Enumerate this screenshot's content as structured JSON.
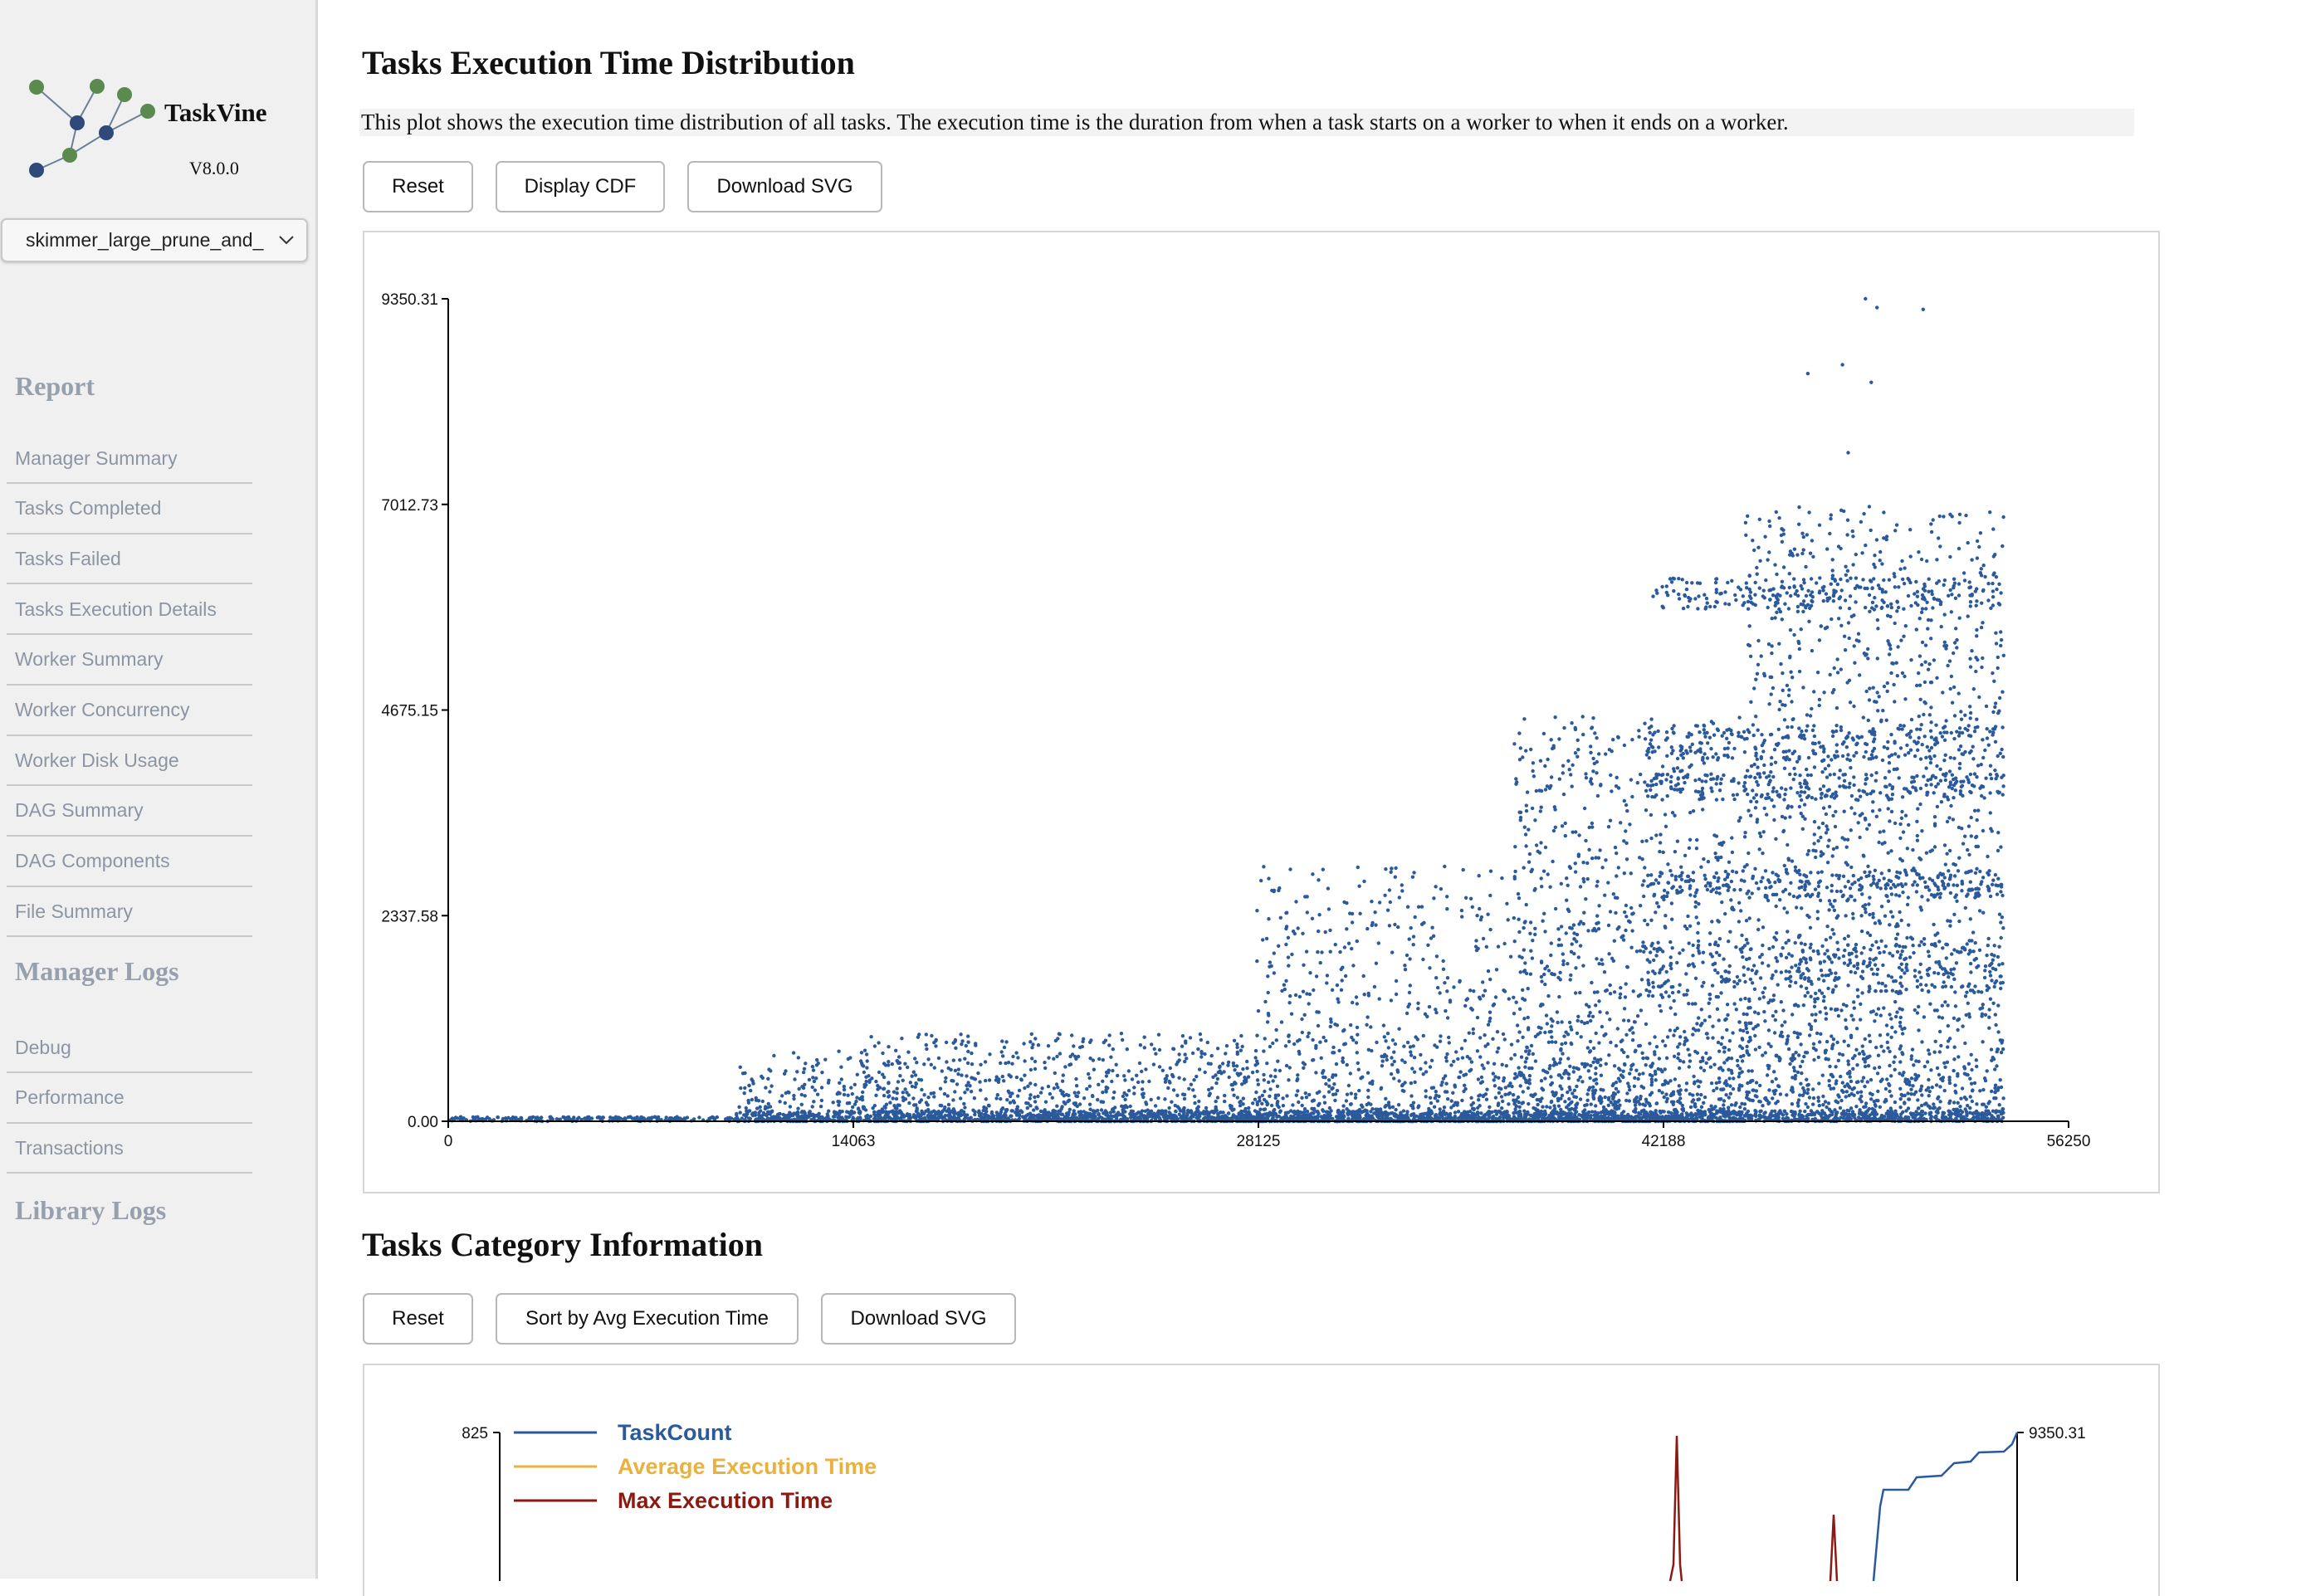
{
  "app": {
    "name": "TaskVine",
    "version": "V8.0.0"
  },
  "log_select": {
    "value": "skimmer_large_prune_and_"
  },
  "sidebar": {
    "report_heading": "Report",
    "report_items": [
      {
        "label": "Manager Summary"
      },
      {
        "label": "Tasks Completed"
      },
      {
        "label": "Tasks Failed"
      },
      {
        "label": "Tasks Execution Details"
      },
      {
        "label": "Worker Summary"
      },
      {
        "label": "Worker Concurrency"
      },
      {
        "label": "Worker Disk Usage"
      },
      {
        "label": "DAG Summary"
      },
      {
        "label": "DAG Components"
      },
      {
        "label": "File Summary"
      }
    ],
    "manager_logs_heading": "Manager Logs",
    "manager_logs_items": [
      {
        "label": "Debug"
      },
      {
        "label": "Performance"
      },
      {
        "label": "Transactions"
      }
    ],
    "library_logs_heading": "Library Logs"
  },
  "execution_section": {
    "title": "Tasks Execution Time Distribution",
    "description": "This plot shows the execution time distribution of all tasks. The execution time is the duration from when a task starts on a worker to when it ends on a worker.",
    "buttons": {
      "reset": "Reset",
      "display_cdf": "Display CDF",
      "download_svg": "Download SVG"
    }
  },
  "category_section": {
    "title": "Tasks Category Information",
    "buttons": {
      "reset": "Reset",
      "sort": "Sort by Avg Execution Time",
      "download_svg": "Download SVG"
    }
  },
  "colors": {
    "point": "#2b5a9c",
    "task_count": "#2b5a9c",
    "avg_exec": "#e8b140",
    "max_exec": "#8b1a12"
  },
  "chart_data": [
    {
      "type": "scatter",
      "title": "",
      "xlabel": "",
      "ylabel": "",
      "xlim": [
        0,
        56250
      ],
      "ylim": [
        0,
        9350.31
      ],
      "x_ticks": [
        "0",
        "14063",
        "28125",
        "42188",
        "56250"
      ],
      "y_ticks": [
        "0.00",
        "2337.58",
        "4675.15",
        "7012.73",
        "9350.31"
      ],
      "grid": false,
      "series": [
        {
          "density_profile": [
            {
              "x_range": [
                0,
                10000
              ],
              "y_range": [
                0,
                60
              ],
              "density": "low"
            },
            {
              "x_range": [
                10000,
                14000
              ],
              "y_range": [
                0,
                800
              ],
              "density": "low"
            },
            {
              "x_range": [
                14000,
                28000
              ],
              "y_range": [
                0,
                1000
              ],
              "density": "medium"
            },
            {
              "x_range": [
                28000,
                37000
              ],
              "y_range": [
                0,
                3000
              ],
              "density": "medium"
            },
            {
              "x_range": [
                37000,
                45000
              ],
              "y_range": [
                0,
                4800
              ],
              "density": "high"
            },
            {
              "x_range": [
                45000,
                54000
              ],
              "y_range": [
                0,
                9350.31
              ],
              "density": "high"
            }
          ],
          "outliers": [
            [
              49200,
              9350.31
            ],
            [
              49600,
              9250
            ],
            [
              51200,
              9230
            ],
            [
              47200,
              8500
            ],
            [
              48400,
              8600
            ],
            [
              49400,
              8400
            ],
            [
              48600,
              7600
            ]
          ]
        }
      ]
    },
    {
      "type": "line",
      "title": "",
      "y_left_ticks": [
        "825"
      ],
      "y_right_ticks": [
        "9350.31"
      ],
      "legend": [
        "TaskCount",
        "Average Execution Time",
        "Max Execution Time"
      ],
      "legend_position": "top-left",
      "series": [
        {
          "name": "TaskCount"
        },
        {
          "name": "Average Execution Time"
        },
        {
          "name": "Max Execution Time"
        }
      ]
    }
  ]
}
